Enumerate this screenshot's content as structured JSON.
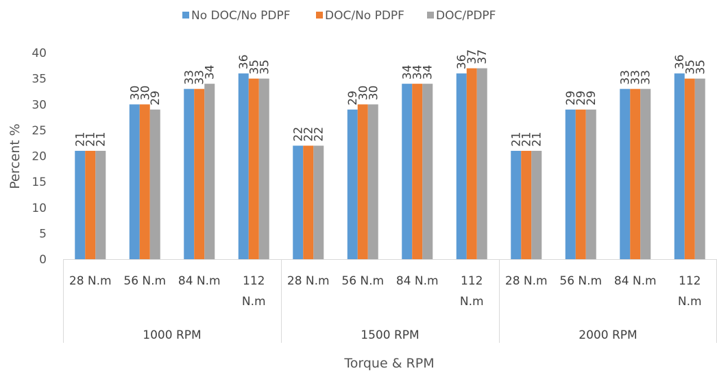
{
  "chart_data": {
    "type": "bar",
    "title": "",
    "xlabel": "Torque & RPM",
    "ylabel": "Percent %",
    "ylim": [
      0,
      40
    ],
    "yticks": [
      0,
      5,
      10,
      15,
      20,
      25,
      30,
      35,
      40
    ],
    "grid": false,
    "legend_position": "top",
    "groups": [
      {
        "label": "1000 RPM",
        "categories": [
          "28 N.m",
          "56 N.m",
          "84 N.m",
          "112 N.m"
        ]
      },
      {
        "label": "1500 RPM",
        "categories": [
          "28 N.m",
          "56 N.m",
          "84 N.m",
          "112 N.m"
        ]
      },
      {
        "label": "2000 RPM",
        "categories": [
          "28 N.m",
          "56 N.m",
          "84 N.m",
          "112 N.m"
        ]
      }
    ],
    "series": [
      {
        "name": "No DOC/No PDPF",
        "color": "#5b9bd5",
        "values": [
          21,
          30,
          33,
          36,
          22,
          29,
          34,
          36,
          21,
          29,
          33,
          36
        ]
      },
      {
        "name": "DOC/No PDPF",
        "color": "#ed7d31",
        "values": [
          21,
          30,
          33,
          35,
          22,
          30,
          34,
          37,
          21,
          29,
          33,
          35
        ]
      },
      {
        "name": "DOC/PDPF",
        "color": "#a5a5a5",
        "values": [
          21,
          29,
          34,
          35,
          22,
          30,
          34,
          37,
          21,
          29,
          33,
          35
        ]
      }
    ]
  }
}
